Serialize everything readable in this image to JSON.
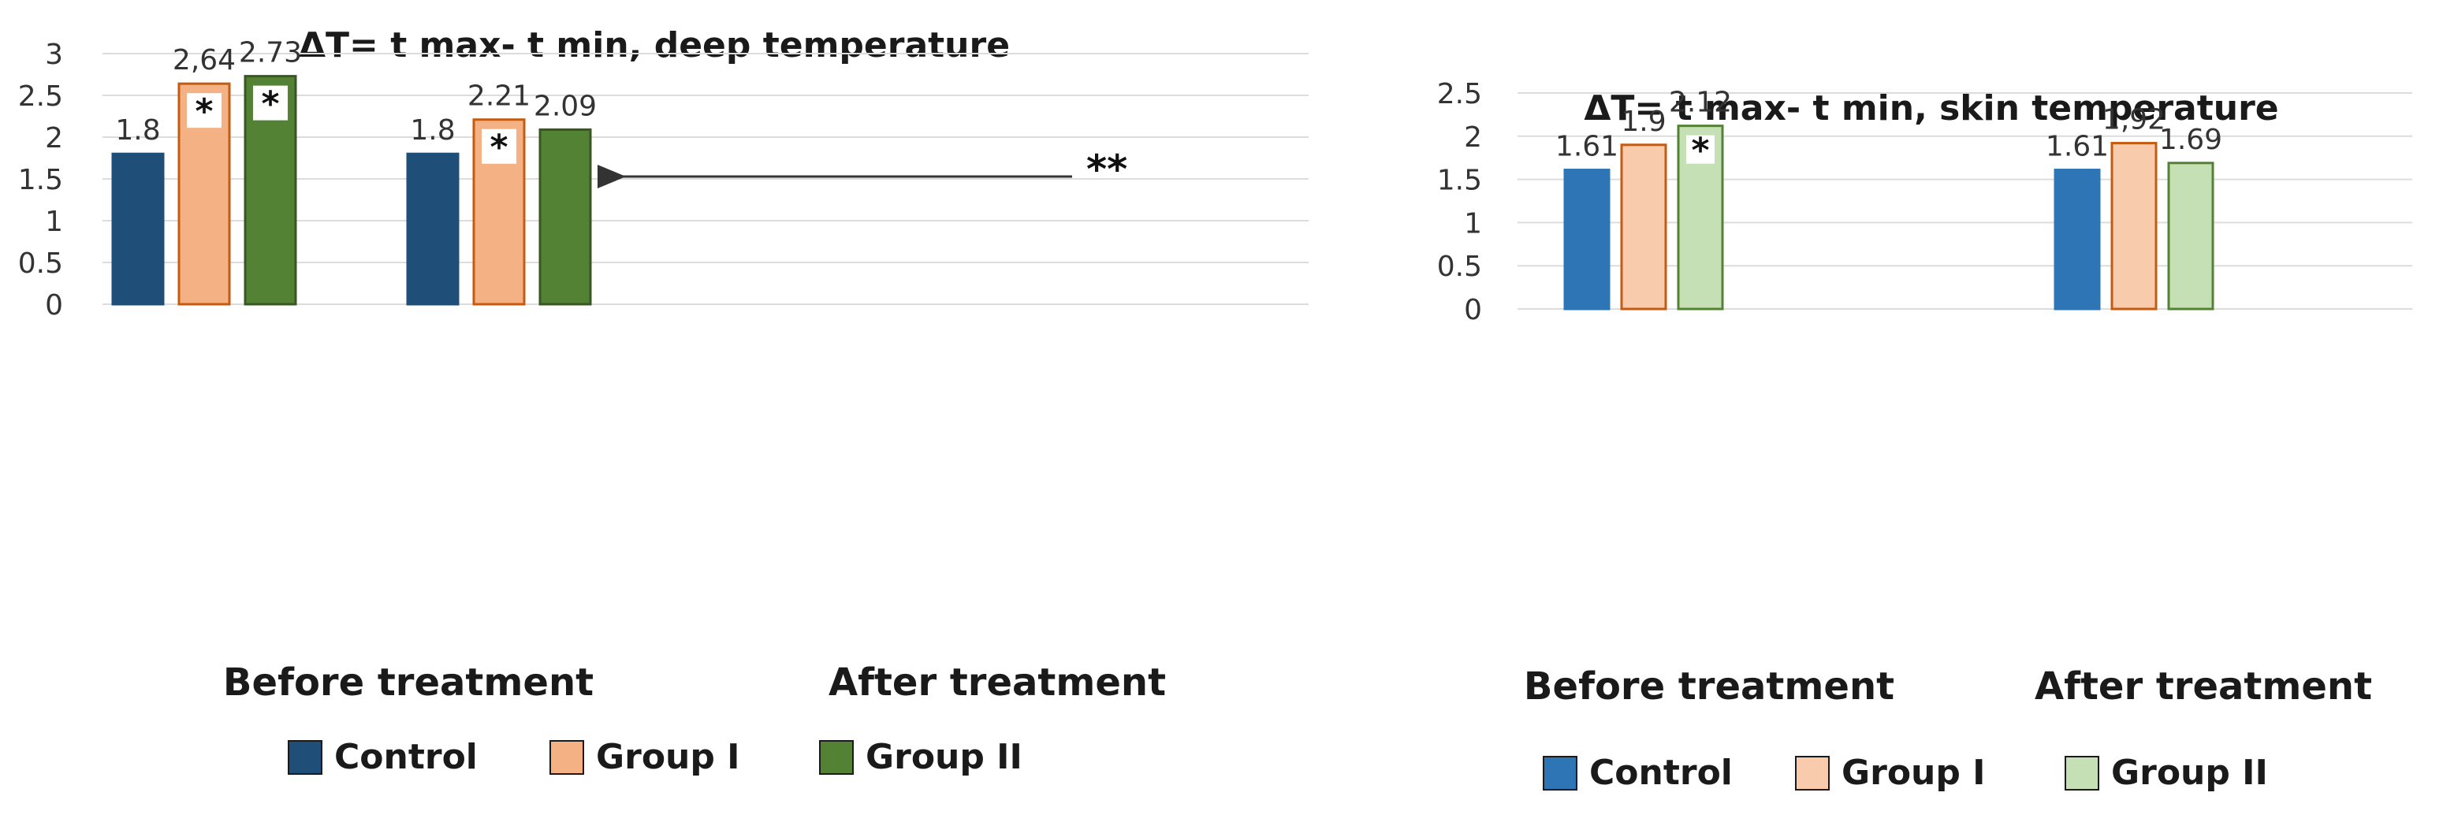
{
  "chart_data": [
    {
      "type": "bar",
      "title": "ΔT= t max- t min, deep temperature",
      "categories": [
        "Before treatment",
        "After treatment"
      ],
      "series": [
        {
          "name": "Control",
          "color": "#1f4e79",
          "values": [
            1.8,
            1.8
          ],
          "labels": [
            "1.8",
            "1.8"
          ]
        },
        {
          "name": "Group I",
          "color": "#f4b183",
          "values": [
            2.64,
            2.21
          ],
          "labels": [
            "2,64",
            "2.21"
          ]
        },
        {
          "name": "Group II",
          "color": "#548235",
          "values": [
            2.73,
            2.09
          ],
          "labels": [
            "2.73",
            "2.09"
          ]
        }
      ],
      "ylim": [
        0,
        3
      ],
      "yticks": [
        "0",
        "0.5",
        "1",
        "1.5",
        "2",
        "2.5",
        "3"
      ],
      "significance": [
        {
          "series": 1,
          "category": 0,
          "text": "*"
        },
        {
          "series": 2,
          "category": 0,
          "text": "*"
        },
        {
          "series": 1,
          "category": 1,
          "text": "*"
        }
      ],
      "annotation": {
        "text": "**",
        "from": "After treatment",
        "to": "Group II, Before treatment"
      }
    },
    {
      "type": "bar",
      "title": "ΔT= t max- t min, skin temperature",
      "categories": [
        "Before treatment",
        "After treatment"
      ],
      "series": [
        {
          "name": "Control",
          "color": "#2e75b6",
          "values": [
            1.61,
            1.61
          ],
          "labels": [
            "1.61",
            "1.61"
          ]
        },
        {
          "name": "Group I",
          "color": "#f8cbad",
          "values": [
            1.9,
            1.92
          ],
          "labels": [
            "1.9",
            "1,92"
          ]
        },
        {
          "name": "Group II",
          "color": "#c5e0b4",
          "values": [
            2.12,
            1.69
          ],
          "labels": [
            "2.12",
            "1.69"
          ]
        }
      ],
      "ylim": [
        0,
        2.5
      ],
      "yticks": [
        "0",
        "0.5",
        "1",
        "1.5",
        "2",
        "2.5"
      ],
      "significance": [
        {
          "series": 2,
          "category": 0,
          "text": "*"
        }
      ]
    }
  ]
}
